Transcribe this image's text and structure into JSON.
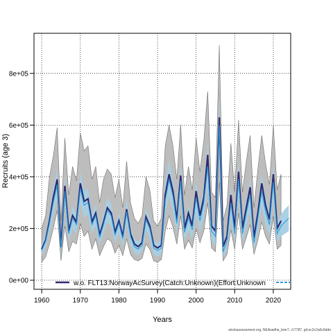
{
  "chart_data": {
    "type": "line",
    "xlabel": "Years",
    "ylabel": "Recruits (age 3)",
    "xlim": [
      1958,
      2024.5
    ],
    "ylim": [
      -35000,
      955000
    ],
    "xticks": [
      1960,
      1970,
      1980,
      1990,
      2000,
      2010,
      2020
    ],
    "xtick_labels": [
      "1960",
      "1970",
      "1980",
      "1990",
      "2000",
      "2010",
      "2020"
    ],
    "yticks": [
      0,
      200000,
      400000,
      600000,
      800000
    ],
    "ytick_labels": [
      "0e+00",
      "2e+05",
      "4e+05",
      "6e+05",
      "8e+05"
    ],
    "grid": true,
    "legend_position": "bottom",
    "colors": {
      "band_grey": "#bdbdbd",
      "band_grey_edge": "#6e6e6e",
      "band_blue": "#a6cfe3",
      "main_line": "#2d2a6e",
      "alt_line": "#2b9be0"
    },
    "series": [
      {
        "name": "w.o. FLT13:NorwayAcSurvey(Catch:Unknown)(Effort:Unknown",
        "x": [
          1960,
          1961,
          1962,
          1963,
          1964,
          1965,
          1966,
          1967,
          1968,
          1969,
          1970,
          1971,
          1972,
          1973,
          1974,
          1975,
          1976,
          1977,
          1978,
          1979,
          1980,
          1981,
          1982,
          1983,
          1984,
          1985,
          1986,
          1987,
          1988,
          1989,
          1990,
          1991,
          1992,
          1993,
          1994,
          1995,
          1996,
          1997,
          1998,
          1999,
          2000,
          2001,
          2002,
          2003,
          2004,
          2005,
          2006,
          2007,
          2008,
          2009,
          2010,
          2011,
          2012,
          2013,
          2014,
          2015,
          2016,
          2017,
          2018,
          2019,
          2020,
          2021,
          2022
        ],
        "y": [
          120000,
          155000,
          230000,
          320000,
          390000,
          130000,
          365000,
          190000,
          250000,
          225000,
          375000,
          305000,
          315000,
          225000,
          260000,
          175000,
          225000,
          280000,
          260000,
          185000,
          230000,
          170000,
          275000,
          180000,
          140000,
          130000,
          145000,
          245000,
          210000,
          135000,
          125000,
          135000,
          330000,
          410000,
          345000,
          235000,
          405000,
          200000,
          260000,
          210000,
          345000,
          250000,
          320000,
          485000,
          210000,
          190000,
          630000,
          130000,
          170000,
          330000,
          200000,
          420000,
          200000,
          280000,
          360000,
          165000,
          260000,
          375000,
          290000,
          235000,
          410000,
          200000,
          230000
        ],
        "lower": [
          70000,
          90000,
          140000,
          200000,
          270000,
          75000,
          210000,
          110000,
          150000,
          140000,
          220000,
          170000,
          190000,
          120000,
          160000,
          95000,
          130000,
          160000,
          150000,
          105000,
          135000,
          95000,
          160000,
          100000,
          80000,
          75000,
          85000,
          140000,
          120000,
          75000,
          70000,
          80000,
          190000,
          250000,
          205000,
          140000,
          250000,
          120000,
          155000,
          125000,
          200000,
          145000,
          190000,
          300000,
          125000,
          110000,
          380000,
          75000,
          100000,
          195000,
          120000,
          260000,
          120000,
          165000,
          215000,
          100000,
          155000,
          225000,
          170000,
          140000,
          250000,
          120000,
          135000
        ],
        "upper": [
          200000,
          250000,
          400000,
          480000,
          590000,
          230000,
          550000,
          330000,
          440000,
          385000,
          570000,
          500000,
          520000,
          390000,
          440000,
          300000,
          390000,
          430000,
          410000,
          320000,
          390000,
          280000,
          460000,
          300000,
          240000,
          220000,
          250000,
          400000,
          350000,
          230000,
          210000,
          240000,
          520000,
          600000,
          520000,
          390000,
          600000,
          330000,
          440000,
          350000,
          550000,
          420000,
          540000,
          730000,
          340000,
          320000,
          910000,
          230000,
          290000,
          530000,
          340000,
          620000,
          340000,
          460000,
          560000,
          280000,
          430000,
          560000,
          450000,
          370000,
          600000,
          350000,
          410000
        ]
      },
      {
        "name": "",
        "x": [
          1960,
          1961,
          1962,
          1963,
          1964,
          1965,
          1966,
          1967,
          1968,
          1969,
          1970,
          1971,
          1972,
          1973,
          1974,
          1975,
          1976,
          1977,
          1978,
          1979,
          1980,
          1981,
          1982,
          1983,
          1984,
          1985,
          1986,
          1987,
          1988,
          1989,
          1990,
          1991,
          1992,
          1993,
          1994,
          1995,
          1996,
          1997,
          1998,
          1999,
          2000,
          2001,
          2002,
          2003,
          2004,
          2005,
          2006,
          2007,
          2008,
          2009,
          2010,
          2011,
          2012,
          2013,
          2014,
          2015,
          2016,
          2017,
          2018,
          2019,
          2020,
          2021,
          2022,
          2023,
          2024
        ],
        "y": [
          115000,
          150000,
          220000,
          300000,
          370000,
          125000,
          345000,
          180000,
          240000,
          215000,
          355000,
          290000,
          300000,
          215000,
          250000,
          165000,
          215000,
          270000,
          250000,
          175000,
          220000,
          160000,
          265000,
          170000,
          130000,
          120000,
          135000,
          235000,
          200000,
          125000,
          115000,
          125000,
          310000,
          390000,
          325000,
          220000,
          385000,
          185000,
          240000,
          195000,
          320000,
          230000,
          300000,
          440000,
          190000,
          170000,
          600000,
          110000,
          150000,
          300000,
          180000,
          390000,
          180000,
          260000,
          330000,
          145000,
          240000,
          345000,
          265000,
          215000,
          380000,
          180000,
          210000,
          225000,
          240000
        ],
        "lower": [
          95000,
          125000,
          185000,
          255000,
          320000,
          100000,
          290000,
          150000,
          200000,
          180000,
          300000,
          245000,
          255000,
          180000,
          210000,
          135000,
          180000,
          225000,
          210000,
          145000,
          185000,
          130000,
          220000,
          140000,
          105000,
          98000,
          110000,
          195000,
          165000,
          100000,
          92000,
          100000,
          255000,
          325000,
          270000,
          180000,
          320000,
          150000,
          195000,
          160000,
          265000,
          185000,
          245000,
          365000,
          150000,
          135000,
          500000,
          85000,
          120000,
          245000,
          145000,
          325000,
          145000,
          210000,
          270000,
          115000,
          195000,
          285000,
          215000,
          170000,
          315000,
          145000,
          170000,
          180000,
          190000
        ],
        "upper": [
          140000,
          180000,
          265000,
          355000,
          430000,
          155000,
          405000,
          215000,
          285000,
          255000,
          420000,
          345000,
          355000,
          255000,
          295000,
          200000,
          255000,
          320000,
          295000,
          210000,
          260000,
          195000,
          315000,
          205000,
          160000,
          148000,
          165000,
          280000,
          240000,
          155000,
          142000,
          155000,
          370000,
          465000,
          385000,
          265000,
          455000,
          225000,
          290000,
          235000,
          380000,
          280000,
          360000,
          525000,
          235000,
          210000,
          710000,
          140000,
          185000,
          360000,
          220000,
          460000,
          220000,
          310000,
          395000,
          180000,
          290000,
          410000,
          320000,
          265000,
          450000,
          220000,
          255000,
          275000,
          290000
        ]
      }
    ],
    "credit": "stockassessment.org, NEAsaithe_bmr7, r17787, git:ec2c2a0c6dde"
  }
}
